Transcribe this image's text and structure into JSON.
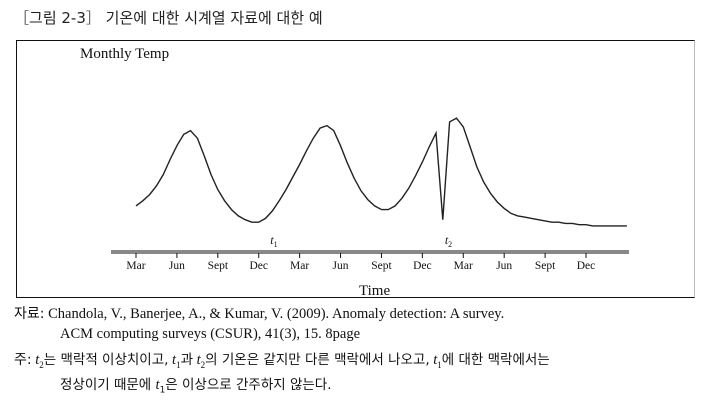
{
  "figure": {
    "title_bracket_open": "［",
    "title_label": "그림 2-3",
    "title_bracket_close": "］",
    "title_text": " 기온에 대한 시계열 자료에 대한 예"
  },
  "chart_data": {
    "type": "line",
    "title": "",
    "ylabel": "Monthly Temp",
    "xlabel": "Time",
    "categories": [
      "Mar",
      "Jun",
      "Sept",
      "Dec",
      "Mar",
      "Jun",
      "Sept",
      "Dec",
      "Mar",
      "Jun",
      "Sept",
      "Dec"
    ],
    "series": [
      {
        "name": "",
        "x": [
          0,
          0.5,
          1,
          1.5,
          2,
          2.5,
          3,
          3.5,
          4,
          4.5,
          5,
          5.5,
          6,
          6.5,
          7,
          7.5,
          8,
          8.5,
          9,
          9.5,
          10,
          10.5,
          11,
          11.5,
          12,
          12.5,
          13,
          13.5,
          14,
          14.5,
          15,
          15.5,
          16,
          16.5,
          17,
          17.5,
          18,
          18.5,
          19,
          19.5,
          20,
          20.5,
          21,
          21.5,
          22,
          22.5,
          23,
          23.5,
          24,
          24.5,
          25,
          25.5,
          26,
          26.5,
          27,
          27.5,
          28,
          28.5,
          29,
          29.5,
          30,
          30.5,
          31,
          31.5,
          32,
          32.5,
          33,
          33.5,
          34,
          34.5,
          35,
          35.5,
          36
        ],
        "y": [
          3.6,
          4.0,
          4.5,
          5.2,
          6.1,
          7.3,
          8.4,
          9.3,
          9.6,
          9.0,
          7.6,
          6.1,
          4.9,
          4.0,
          3.3,
          2.8,
          2.5,
          2.3,
          2.3,
          2.6,
          3.2,
          4.0,
          4.9,
          5.9,
          6.9,
          8.0,
          9.0,
          9.8,
          10.0,
          9.6,
          8.4,
          7.0,
          5.8,
          4.8,
          4.1,
          3.6,
          3.3,
          3.3,
          3.6,
          4.2,
          5.0,
          6.0,
          7.1,
          8.3,
          9.4,
          2.5,
          10.3,
          10.6,
          9.9,
          8.3,
          6.7,
          5.5,
          4.6,
          3.9,
          3.4,
          3.0,
          2.8,
          2.7,
          2.6,
          2.5,
          2.4,
          2.3,
          2.3,
          2.2,
          2.2,
          2.1,
          2.1,
          2.0,
          2.0,
          2.0,
          2.0,
          2.0,
          2.0
        ],
        "color": "#222222"
      }
    ],
    "annotations": [
      {
        "text": "t",
        "subscript": "1",
        "x": 9.7
      },
      {
        "text": "t",
        "subscript": "2",
        "x": 22.5
      }
    ],
    "ylim": [
      0,
      13
    ],
    "xlim": [
      -0.5,
      36.5
    ]
  },
  "source": {
    "label": "자료:",
    "line1": "Chandola, V., Banerjee, A., & Kumar, V. (2009). Anomaly detection: A survey.",
    "line2": "ACM computing surveys (CSUR), 41(3), 15. 8page"
  },
  "footnote": {
    "label": "주:",
    "t": "t",
    "sub2": "2",
    "sub1": "1",
    "p1": "는 맥락적 이상치이고,",
    "p2": "과",
    "p3": "의 기온은 같지만 다른 맥락에서 나오고,",
    "p4": "에 대한 맥락에서는",
    "line2_a": "정상이기 때문에",
    "line2_b": "은 이상으로 간주하지 않는다."
  }
}
